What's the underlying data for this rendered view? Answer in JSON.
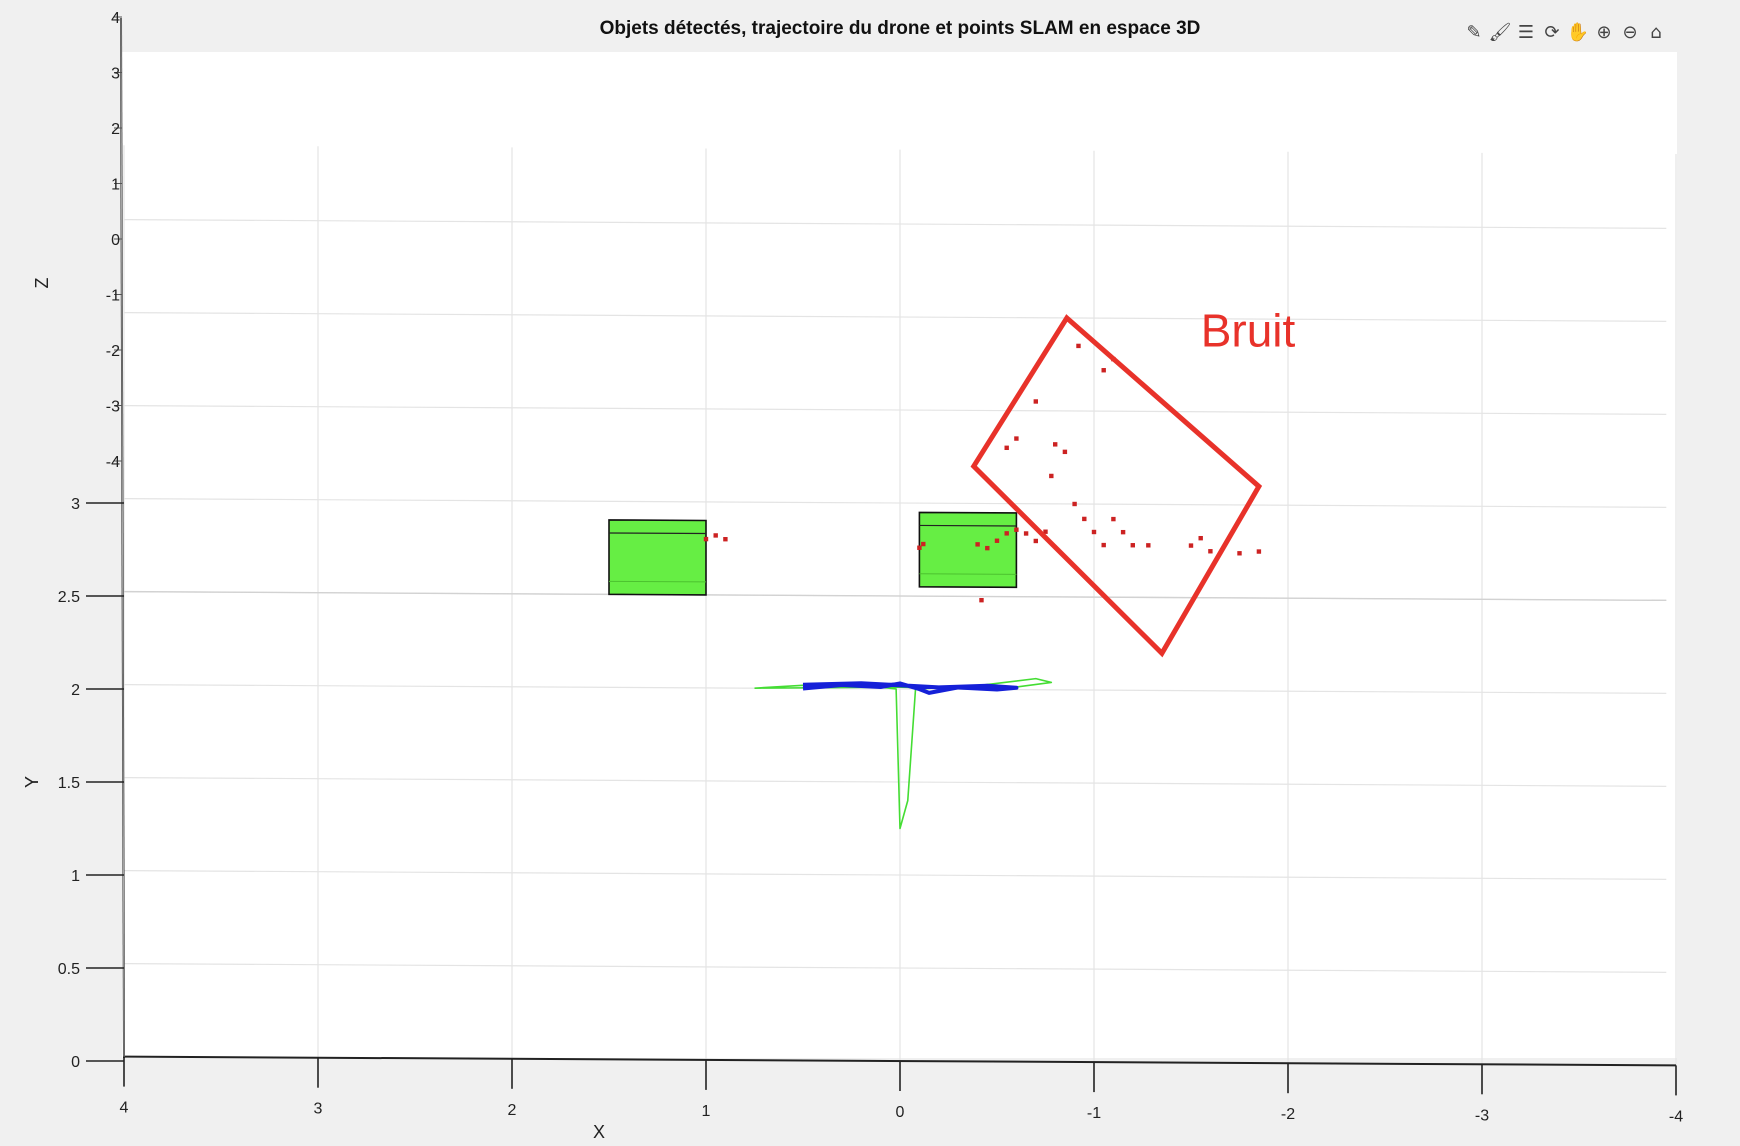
{
  "window": {
    "toolbar_icons": [
      "edit-plot-icon",
      "brush-icon",
      "legend-icon",
      "rotate-3d-icon",
      "pan-hand-icon",
      "zoom-in-icon",
      "zoom-out-icon",
      "home-icon"
    ]
  },
  "chart_data": {
    "type": "scatter",
    "title": "Objets détectés, trajectoire du drone et points SLAM en espace 3D",
    "xlabel": "X",
    "ylabel": "Y",
    "zlabel": "Z",
    "xlim": [
      4,
      -4
    ],
    "ylim": [
      0,
      3
    ],
    "x_ticks": [
      "4",
      "3",
      "2",
      "1",
      "0",
      "-1",
      "-2",
      "-3",
      "-4"
    ],
    "y_ticks": [
      "0",
      "0.5",
      "1",
      "1.5",
      "2",
      "2.5",
      "3"
    ],
    "z_ticks": [
      "4",
      "3",
      "2",
      "1",
      "0",
      "-1",
      "-2",
      "-3",
      "-4"
    ],
    "grid": true,
    "colors": {
      "boxes": "#66ee44",
      "trajectory_blue": "#1520d8",
      "trajectory_green": "#44dd33",
      "slam_points": "#cc2222",
      "annotation": "#e8322a"
    },
    "objects": [
      {
        "x": [
          1.0,
          1.5
        ],
        "y": [
          2.5,
          2.9
        ]
      },
      {
        "x": [
          -0.1,
          -0.6
        ],
        "y": [
          2.55,
          2.95
        ]
      }
    ],
    "trajectory_blue": [
      {
        "x": 0.5,
        "y": 2.0
      },
      {
        "x": 0.3,
        "y": 2.02
      },
      {
        "x": 0.1,
        "y": 2.01
      },
      {
        "x": 0.0,
        "y": 2.03
      },
      {
        "x": -0.1,
        "y": 2.0
      },
      {
        "x": -0.15,
        "y": 1.98
      },
      {
        "x": -0.3,
        "y": 2.01
      },
      {
        "x": -0.5,
        "y": 2.0
      },
      {
        "x": -0.6,
        "y": 2.01
      },
      {
        "x": -0.45,
        "y": 2.02
      },
      {
        "x": -0.2,
        "y": 2.01
      },
      {
        "x": 0.2,
        "y": 2.03
      },
      {
        "x": 0.5,
        "y": 2.02
      }
    ],
    "trajectory_green": [
      {
        "x": 0.75,
        "y": 2.0
      },
      {
        "x": 0.3,
        "y": 2.03
      },
      {
        "x": 0.02,
        "y": 2.0
      },
      {
        "x": 0.0,
        "y": 1.25
      },
      {
        "x": -0.04,
        "y": 1.4
      },
      {
        "x": -0.08,
        "y": 2.0
      },
      {
        "x": -0.4,
        "y": 2.02
      },
      {
        "x": -0.7,
        "y": 2.06
      },
      {
        "x": -0.78,
        "y": 2.04
      },
      {
        "x": -0.5,
        "y": 2.0
      },
      {
        "x": 0.0,
        "y": 2.01
      },
      {
        "x": 0.75,
        "y": 2.0
      }
    ],
    "slam_points": [
      {
        "x": 1.0,
        "y": 2.8
      },
      {
        "x": 0.95,
        "y": 2.82
      },
      {
        "x": 0.9,
        "y": 2.8
      },
      {
        "x": -0.1,
        "y": 2.76
      },
      {
        "x": -0.12,
        "y": 2.78
      },
      {
        "x": -0.4,
        "y": 2.78
      },
      {
        "x": -0.45,
        "y": 2.76
      },
      {
        "x": -0.5,
        "y": 2.8
      },
      {
        "x": -0.55,
        "y": 2.84
      },
      {
        "x": -0.6,
        "y": 2.86
      },
      {
        "x": -0.65,
        "y": 2.84
      },
      {
        "x": -0.7,
        "y": 2.8
      },
      {
        "x": -0.75,
        "y": 2.85
      },
      {
        "x": -0.42,
        "y": 2.48
      },
      {
        "x": -0.55,
        "y": 3.3
      },
      {
        "x": -0.6,
        "y": 3.35
      },
      {
        "x": -0.7,
        "y": 3.55
      },
      {
        "x": -0.8,
        "y": 3.32
      },
      {
        "x": -0.85,
        "y": 3.28
      },
      {
        "x": -0.78,
        "y": 3.15
      },
      {
        "x": -0.9,
        "y": 3.0
      },
      {
        "x": -0.95,
        "y": 2.92
      },
      {
        "x": -1.0,
        "y": 2.85
      },
      {
        "x": -1.05,
        "y": 2.78
      },
      {
        "x": -0.92,
        "y": 3.85
      },
      {
        "x": -1.05,
        "y": 3.72
      },
      {
        "x": -1.1,
        "y": 3.78
      },
      {
        "x": -1.1,
        "y": 2.92
      },
      {
        "x": -1.15,
        "y": 2.85
      },
      {
        "x": -1.2,
        "y": 2.78
      },
      {
        "x": -1.28,
        "y": 2.78
      },
      {
        "x": -1.5,
        "y": 2.78
      },
      {
        "x": -1.55,
        "y": 2.82
      },
      {
        "x": -1.6,
        "y": 2.75
      },
      {
        "x": -1.75,
        "y": 2.74
      },
      {
        "x": -1.85,
        "y": 2.75
      }
    ],
    "annotations": [
      {
        "text": "Bruit",
        "region_corners": [
          [
            -0.86,
            4.0
          ],
          [
            -1.85,
            3.1
          ],
          [
            -1.35,
            2.2
          ],
          [
            -0.38,
            3.2
          ]
        ]
      }
    ]
  }
}
